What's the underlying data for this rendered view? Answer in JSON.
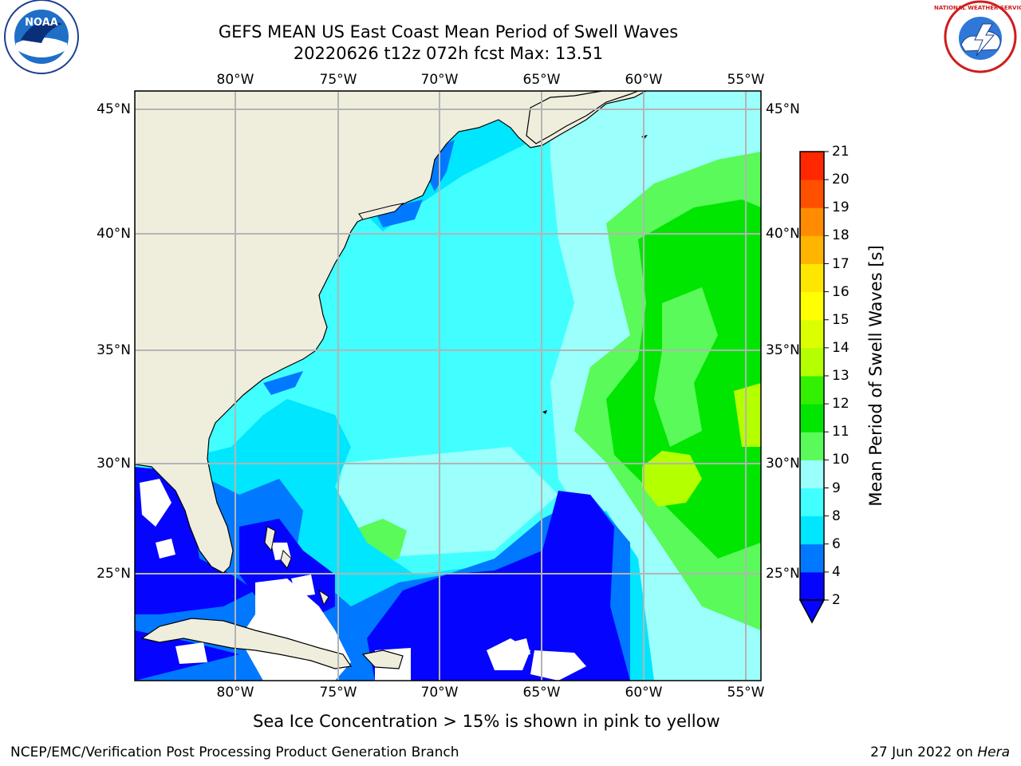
{
  "title": {
    "line1": "GEFS MEAN US East Coast Mean Period of Swell Waves",
    "line2": "20220626 t12z 072h fcst   Max: 13.51"
  },
  "map": {
    "lon_labels": [
      "80°W",
      "75°W",
      "70°W",
      "65°W",
      "60°W",
      "55°W"
    ],
    "lat_labels": [
      "45°N",
      "40°N",
      "35°N",
      "30°N",
      "25°N"
    ],
    "colors": {
      "land": "#efeedd",
      "ocean_cyan": "#41ffff",
      "ocean_light": "#9bfffb",
      "ocean_mid": "#00e6ff",
      "ocean_blue": "#0078ff",
      "ocean_deep": "#0505ff",
      "green_light": "#5afa5a",
      "green": "#00e600",
      "yellowgreen": "#b4ff00",
      "grid": "#b4b4b4"
    }
  },
  "colorbar": {
    "label": "Mean Period of Swell Waves [s]",
    "ticks": [
      "2",
      "4",
      "6",
      "8",
      "9",
      "10",
      "11",
      "12",
      "13",
      "14",
      "15",
      "16",
      "17",
      "18",
      "19",
      "20",
      "21"
    ],
    "colors": [
      "#0505ff",
      "#0078ff",
      "#00e6ff",
      "#41ffff",
      "#9bfffb",
      "#5afa5a",
      "#00e600",
      "#32f000",
      "#b4ff00",
      "#dcff00",
      "#ffff00",
      "#ffe600",
      "#ffb400",
      "#ff8c00",
      "#ff5000",
      "#ff2800",
      "#ff0000"
    ]
  },
  "caption": "Sea Ice Concentration > 15% is shown in pink to yellow",
  "footer": {
    "left": "NCEP/EMC/Verification Post Processing Product Generation Branch",
    "right_date": "27 Jun 2022 on ",
    "right_host": "Hera"
  },
  "logos": {
    "noaa": "NOAA",
    "nws_text": "NATIONAL WEATHER SERVICE"
  }
}
